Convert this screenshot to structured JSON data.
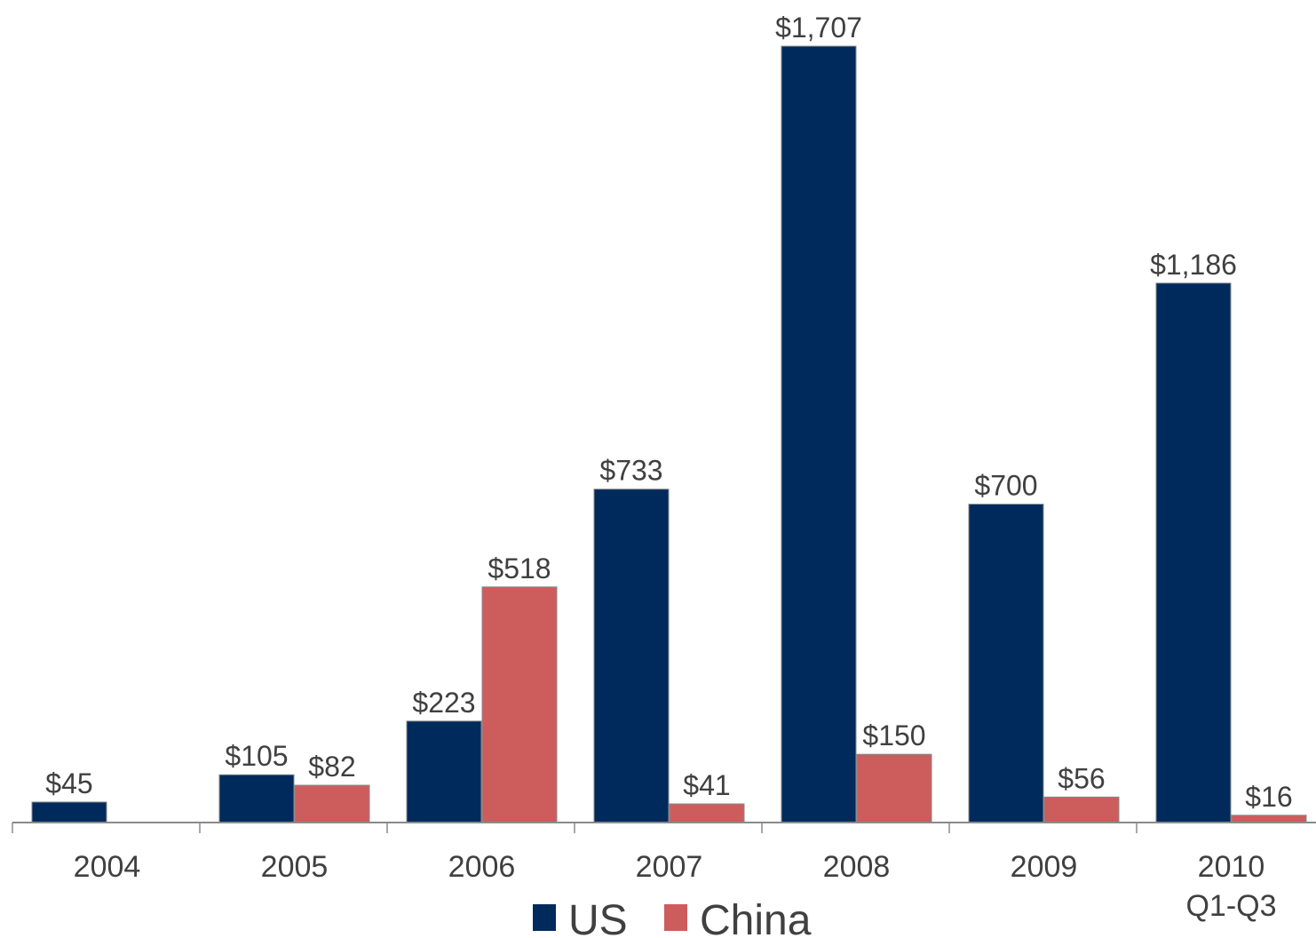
{
  "chart_data": {
    "type": "bar",
    "categories": [
      [
        "2004"
      ],
      [
        "2005"
      ],
      [
        "2006"
      ],
      [
        "2007"
      ],
      [
        "2008"
      ],
      [
        "2009"
      ],
      [
        "2010",
        "Q1-Q3"
      ]
    ],
    "series": [
      {
        "name": "US",
        "color": "#002a5c",
        "values": [
          45,
          105,
          223,
          733,
          1707,
          700,
          1186
        ],
        "labels": [
          "$45",
          "$105",
          "$223",
          "$733",
          "$1,707",
          "$700",
          "$1,186"
        ]
      },
      {
        "name": "China",
        "color": "#cd5c5c",
        "values": [
          null,
          82,
          518,
          41,
          150,
          56,
          16
        ],
        "labels": [
          null,
          "$82",
          "$518",
          "$41",
          "$150",
          "$56",
          "$16"
        ]
      }
    ],
    "ylim": [
      0,
      1707
    ],
    "grid": false,
    "legend_position": "bottom-center",
    "title": "",
    "xlabel": "",
    "ylabel": ""
  }
}
